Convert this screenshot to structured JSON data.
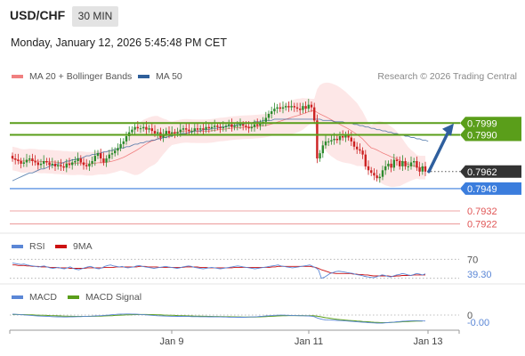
{
  "header": {
    "symbol": "USD/CHF",
    "timeframe": "30 MIN",
    "datetime": "Monday, January 12, 2026 5:45:48 PM CET"
  },
  "legend": {
    "bollinger_label": "MA 20 + Bollinger Bands",
    "ma50_label": "MA 50",
    "credit": "Research © 2026 Trading Central"
  },
  "colors": {
    "bollinger": "#f08080",
    "bollinger_fill": "#fde3e3",
    "ma50": "#2e5f9a",
    "green": "#5a9e1a",
    "blue": "#3b7ddd",
    "red": "#e05555",
    "dark": "#333333",
    "rsi": "#5b87d6",
    "ma9": "#cc1111",
    "macd": "#5b87d6",
    "macd_signal": "#5a9e1a",
    "up": "#2e8b2e",
    "down": "#cc2222",
    "arrow": "#2f5f9e"
  },
  "chart_data": [
    {
      "type": "candlestick",
      "x_ticks": [
        "Jan 9",
        "Jan 11",
        "Jan 13"
      ],
      "ylim": [
        0.7915,
        0.8025
      ],
      "levels": [
        {
          "value": 0.7999,
          "label": "0.7999",
          "color": "green",
          "boxed": true
        },
        {
          "value": 0.799,
          "label": "0.7990",
          "color": "green",
          "boxed": true
        },
        {
          "value": 0.7962,
          "label": "0.7962",
          "color": "dark",
          "boxed": true
        },
        {
          "value": 0.7949,
          "label": "0.7949",
          "color": "blue",
          "boxed": true
        },
        {
          "value": 0.7932,
          "label": "0.7932",
          "color": "red",
          "boxed": false
        },
        {
          "value": 0.7922,
          "label": "0.7922",
          "color": "red",
          "boxed": false
        }
      ],
      "forecast_arrow": {
        "from": 0.7962,
        "to": 0.7998
      },
      "close": [
        0.7972,
        0.7971,
        0.797,
        0.7968,
        0.7969,
        0.7971,
        0.7972,
        0.797,
        0.7969,
        0.7967,
        0.7968,
        0.797,
        0.7969,
        0.7967,
        0.7968,
        0.7966,
        0.7967,
        0.7966,
        0.7965,
        0.7968,
        0.7967,
        0.7969,
        0.797,
        0.7972,
        0.7969,
        0.7967,
        0.7966,
        0.7968,
        0.797,
        0.7974,
        0.7976,
        0.7972,
        0.7969,
        0.7972,
        0.7975,
        0.7976,
        0.7978,
        0.798,
        0.7983,
        0.7985,
        0.7989,
        0.7992,
        0.7994,
        0.7996,
        0.7995,
        0.7995,
        0.7996,
        0.7994,
        0.7995,
        0.7993,
        0.7991,
        0.7992,
        0.7988,
        0.799,
        0.7993,
        0.7991,
        0.7992,
        0.7991,
        0.7992,
        0.7994,
        0.7995,
        0.7994,
        0.7993,
        0.7993,
        0.7995,
        0.7994,
        0.7995,
        0.7994,
        0.7996,
        0.7995,
        0.7996,
        0.7997,
        0.7996,
        0.7995,
        0.7996,
        0.7997,
        0.7998,
        0.7996,
        0.7997,
        0.7997,
        0.7998,
        0.7997,
        0.7996,
        0.7995,
        0.7996,
        0.7998,
        0.7997,
        0.7999,
        0.8,
        0.8003,
        0.8006,
        0.8008,
        0.801,
        0.8011,
        0.801,
        0.8011,
        0.8012,
        0.8011,
        0.8012,
        0.8011,
        0.801,
        0.8009,
        0.8012,
        0.801,
        0.8013,
        0.8011,
        0.8001,
        0.7972,
        0.7976,
        0.7982,
        0.7985,
        0.7985,
        0.7986,
        0.7987,
        0.7986,
        0.7989,
        0.7988,
        0.799,
        0.7988,
        0.7985,
        0.7981,
        0.7979,
        0.7978,
        0.7975,
        0.7966,
        0.7963,
        0.7961,
        0.7959,
        0.7957,
        0.7958,
        0.7963,
        0.7966,
        0.7968,
        0.7965,
        0.7971,
        0.797,
        0.7966,
        0.797,
        0.7966,
        0.7966,
        0.7969,
        0.797,
        0.7965,
        0.7962,
        0.7966,
        0.7962
      ],
      "ma50": [
        0.7955,
        0.7956,
        0.7957,
        0.7958,
        0.7959,
        0.796,
        0.7961,
        0.7961,
        0.7962,
        0.7963,
        0.7964,
        0.7964,
        0.7965,
        0.7966,
        0.7967,
        0.7967,
        0.7968,
        0.7968,
        0.7969,
        0.797,
        0.797,
        0.7971,
        0.7971,
        0.7972,
        0.7972,
        0.7973,
        0.7974,
        0.7974,
        0.7975,
        0.7975,
        0.7976,
        0.7976,
        0.7977,
        0.7977,
        0.7978,
        0.7978,
        0.7979,
        0.7979,
        0.798,
        0.798,
        0.7981,
        0.7981,
        0.7982,
        0.7983,
        0.7983,
        0.7984,
        0.7984,
        0.7985,
        0.7985,
        0.7986,
        0.7986,
        0.7987,
        0.7987,
        0.7988,
        0.7988,
        0.7989,
        0.7989,
        0.799,
        0.799,
        0.7991,
        0.7991,
        0.7991,
        0.7992,
        0.7992,
        0.7993,
        0.7993,
        0.7993,
        0.7994,
        0.7994,
        0.7994,
        0.7995,
        0.7995,
        0.7995,
        0.7996,
        0.7996,
        0.7996,
        0.7997,
        0.7997,
        0.7997,
        0.7998,
        0.7998,
        0.7998,
        0.7999,
        0.7999,
        0.7999,
        0.8,
        0.8,
        0.8,
        0.8001,
        0.8001,
        0.8001,
        0.8001,
        0.8002,
        0.8002,
        0.8002,
        0.8002,
        0.8002,
        0.8002,
        0.8002,
        0.8002,
        0.8002,
        0.8002,
        0.8002,
        0.8002,
        0.8002,
        0.8002,
        0.8002,
        0.8002,
        0.8002,
        0.8001,
        0.8001,
        0.8001,
        0.8001,
        0.8,
        0.8,
        0.8,
        0.8,
        0.7999,
        0.7999,
        0.7999,
        0.7998,
        0.7998,
        0.7997,
        0.7997,
        0.7996,
        0.7996,
        0.7995,
        0.7995,
        0.7994,
        0.7994,
        0.7993,
        0.7993,
        0.7992,
        0.7992,
        0.7991,
        0.7991,
        0.799,
        0.799,
        0.7989,
        0.7989,
        0.7988,
        0.7988,
        0.7987,
        0.7987,
        0.7986,
        0.7986,
        0.7985
      ]
    },
    {
      "type": "line",
      "name": "RSI",
      "series": [
        {
          "name": "RSI",
          "color": "rsi"
        },
        {
          "name": "9MA",
          "color": "ma9"
        }
      ],
      "ylim": [
        0,
        100
      ],
      "levels": [
        {
          "value": 70,
          "label": "70"
        },
        {
          "value": 30,
          "label": ""
        }
      ],
      "value_label": "39.30",
      "rsi": [
        62,
        61,
        60,
        59,
        60,
        58,
        57,
        56,
        55,
        54,
        55,
        56,
        54,
        52,
        51,
        52,
        53,
        51,
        50,
        52,
        54,
        51,
        49,
        48,
        50,
        52,
        54,
        55,
        53,
        51,
        50,
        52,
        55,
        57,
        58,
        56,
        55,
        54,
        55,
        53,
        52,
        53,
        54,
        56,
        57,
        55,
        54,
        53,
        52,
        51,
        52,
        53,
        54,
        55,
        54,
        53,
        52,
        51,
        52,
        54,
        55,
        56,
        55,
        53,
        52,
        51,
        50,
        51,
        52,
        53,
        52,
        51,
        50,
        51,
        52,
        53,
        54,
        55,
        56,
        55,
        54,
        53,
        52,
        51,
        50,
        51,
        52,
        53,
        54,
        55,
        56,
        57,
        58,
        56,
        55,
        54,
        53,
        52,
        53,
        54,
        55,
        56,
        57,
        58,
        55,
        52,
        48,
        30,
        32,
        36,
        40,
        42,
        44,
        45,
        44,
        43,
        42,
        41,
        40,
        38,
        37,
        36,
        34,
        33,
        32,
        31,
        33,
        35,
        37,
        36,
        34,
        33,
        35,
        37,
        38,
        40,
        39,
        37,
        36,
        38,
        40,
        39,
        37,
        39.3
      ],
      "ma9": [
        58,
        58,
        57,
        57,
        57,
        56,
        56,
        55,
        55,
        55,
        54,
        54,
        54,
        53,
        53,
        53,
        52,
        52,
        52,
        52,
        51,
        51,
        51,
        51,
        51,
        51,
        52,
        52,
        52,
        52,
        52,
        52,
        53,
        53,
        53,
        53,
        54,
        54,
        54,
        54,
        54,
        54,
        54,
        54,
        55,
        55,
        55,
        54,
        54,
        54,
        54,
        53,
        53,
        53,
        53,
        53,
        53,
        53,
        53,
        53,
        54,
        54,
        54,
        54,
        54,
        53,
        53,
        53,
        52,
        52,
        52,
        52,
        52,
        52,
        52,
        52,
        52,
        53,
        53,
        53,
        53,
        53,
        53,
        53,
        53,
        53,
        53,
        53,
        53,
        53,
        54,
        54,
        55,
        55,
        55,
        55,
        55,
        55,
        55,
        55,
        55,
        55,
        55,
        55,
        54,
        53,
        51,
        48,
        46,
        44,
        42,
        41,
        40,
        40,
        40,
        40,
        40,
        40,
        39,
        39,
        38,
        38,
        37,
        37,
        36,
        35,
        35,
        35,
        35,
        35,
        35,
        34,
        34,
        35,
        35,
        36,
        36,
        36,
        36,
        37,
        37,
        37,
        37,
        37
      ]
    },
    {
      "type": "line",
      "name": "MACD",
      "series": [
        {
          "name": "MACD",
          "color": "macd"
        },
        {
          "name": "MACD Signal",
          "color": "macd_signal"
        }
      ],
      "ylim": [
        -1,
        1
      ],
      "levels": [
        {
          "value": 0,
          "label": "0"
        }
      ],
      "value_label": "-0.00",
      "macd": [
        0.25,
        0.24,
        0.22,
        0.2,
        0.18,
        0.16,
        0.14,
        0.12,
        0.1,
        0.08,
        0.07,
        0.06,
        0.05,
        0.03,
        0.02,
        0.01,
        0.0,
        -0.01,
        -0.02,
        -0.02,
        -0.01,
        0.0,
        0.01,
        0.02,
        0.02,
        0.03,
        0.05,
        0.06,
        0.07,
        0.08,
        0.1,
        0.11,
        0.13,
        0.15,
        0.17,
        0.2,
        0.22,
        0.24,
        0.25,
        0.26,
        0.27,
        0.27,
        0.26,
        0.25,
        0.24,
        0.22,
        0.2,
        0.18,
        0.16,
        0.14,
        0.12,
        0.1,
        0.09,
        0.08,
        0.07,
        0.06,
        0.05,
        0.05,
        0.04,
        0.04,
        0.03,
        0.03,
        0.03,
        0.02,
        0.02,
        0.02,
        0.01,
        0.01,
        0.01,
        0.0,
        0.0,
        0.0,
        -0.01,
        -0.01,
        -0.02,
        -0.02,
        -0.03,
        -0.03,
        -0.03,
        -0.04,
        -0.04,
        -0.04,
        -0.03,
        -0.02,
        -0.01,
        0.0,
        0.02,
        0.04,
        0.06,
        0.08,
        0.1,
        0.12,
        0.14,
        0.15,
        0.16,
        0.16,
        0.15,
        0.14,
        0.13,
        0.12,
        0.11,
        0.1,
        0.1,
        0.09,
        0.08,
        0.06,
        0.02,
        -0.1,
        -0.18,
        -0.24,
        -0.28,
        -0.3,
        -0.31,
        -0.32,
        -0.33,
        -0.35,
        -0.36,
        -0.38,
        -0.4,
        -0.42,
        -0.44,
        -0.46,
        -0.48,
        -0.5,
        -0.52,
        -0.54,
        -0.56,
        -0.57,
        -0.58,
        -0.59,
        -0.58,
        -0.56,
        -0.54,
        -0.52,
        -0.49,
        -0.46,
        -0.44,
        -0.42,
        -0.4,
        -0.38,
        -0.37,
        -0.36,
        -0.36,
        -0.37,
        -0.38,
        -0.39
      ],
      "signal": [
        0.22,
        0.22,
        0.22,
        0.21,
        0.21,
        0.2,
        0.19,
        0.18,
        0.17,
        0.16,
        0.15,
        0.14,
        0.13,
        0.12,
        0.11,
        0.1,
        0.09,
        0.08,
        0.07,
        0.06,
        0.05,
        0.05,
        0.04,
        0.04,
        0.04,
        0.04,
        0.04,
        0.04,
        0.05,
        0.05,
        0.06,
        0.07,
        0.08,
        0.09,
        0.1,
        0.11,
        0.13,
        0.14,
        0.16,
        0.17,
        0.18,
        0.19,
        0.2,
        0.21,
        0.21,
        0.22,
        0.22,
        0.22,
        0.21,
        0.21,
        0.2,
        0.19,
        0.18,
        0.17,
        0.16,
        0.15,
        0.14,
        0.13,
        0.12,
        0.11,
        0.1,
        0.09,
        0.08,
        0.08,
        0.07,
        0.06,
        0.06,
        0.05,
        0.05,
        0.04,
        0.04,
        0.03,
        0.03,
        0.02,
        0.02,
        0.01,
        0.01,
        0.0,
        0.0,
        -0.01,
        -0.01,
        -0.02,
        -0.02,
        -0.02,
        -0.02,
        -0.02,
        -0.01,
        0.0,
        0.01,
        0.02,
        0.04,
        0.05,
        0.07,
        0.08,
        0.09,
        0.1,
        0.11,
        0.12,
        0.12,
        0.12,
        0.12,
        0.12,
        0.12,
        0.11,
        0.11,
        0.1,
        0.09,
        0.06,
        0.02,
        -0.03,
        -0.08,
        -0.12,
        -0.16,
        -0.2,
        -0.23,
        -0.26,
        -0.28,
        -0.31,
        -0.33,
        -0.35,
        -0.37,
        -0.39,
        -0.41,
        -0.43,
        -0.45,
        -0.47,
        -0.49,
        -0.51,
        -0.52,
        -0.53,
        -0.54,
        -0.54,
        -0.53,
        -0.52,
        -0.51,
        -0.49,
        -0.48,
        -0.46,
        -0.45,
        -0.43,
        -0.42,
        -0.41,
        -0.4,
        -0.4,
        -0.4
      ]
    }
  ]
}
